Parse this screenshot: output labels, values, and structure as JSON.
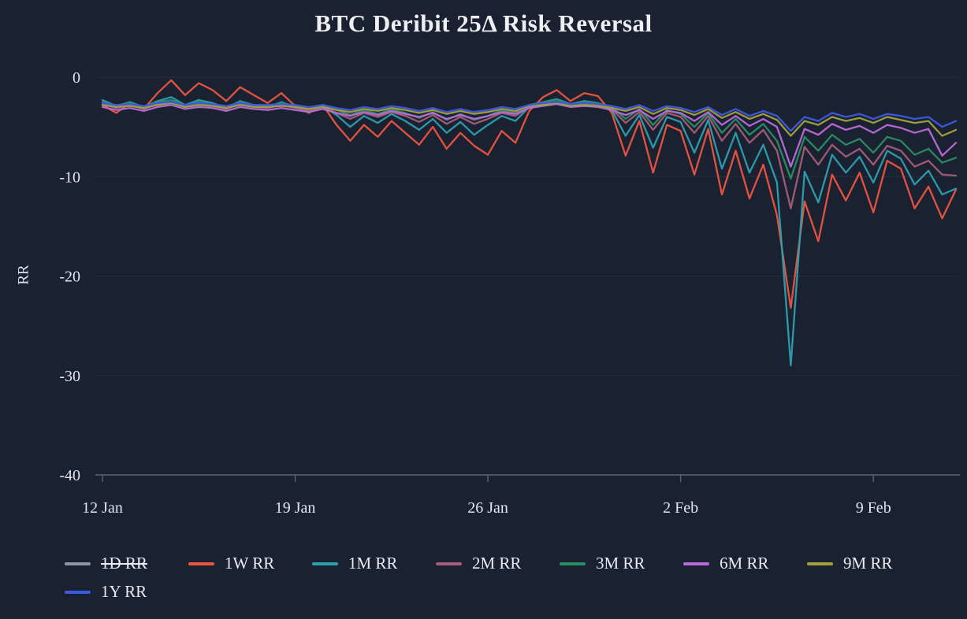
{
  "chart_data": {
    "type": "line",
    "title": "BTC Deribit 25Δ Risk Reversal",
    "ylabel": "RR",
    "xlabel": "",
    "x_unit": "days since 12 Jan",
    "x_step_days": 0.5,
    "xlim_days": [
      0,
      31
    ],
    "ylim": [
      -40,
      0
    ],
    "grid": "horizontal-faint",
    "legend_position": "bottom-left",
    "background_color": "#1a2232",
    "yticks": [
      0,
      -10,
      -20,
      -30,
      -40
    ],
    "xticks": [
      {
        "label": "12 Jan",
        "day": 0
      },
      {
        "label": "19 Jan",
        "day": 7
      },
      {
        "label": "26 Jan",
        "day": 14
      },
      {
        "label": "2 Feb",
        "day": 21
      },
      {
        "label": "9 Feb",
        "day": 28
      }
    ],
    "series": [
      {
        "name": "1D RR",
        "color": "#8e96a3",
        "hidden": true,
        "values": []
      },
      {
        "name": "1W RR",
        "color": "#ee5540",
        "hidden": false,
        "values": [
          -2.8,
          -3.6,
          -2.6,
          -3.2,
          -1.6,
          -0.3,
          -1.8,
          -0.6,
          -1.3,
          -2.4,
          -1.0,
          -1.8,
          -2.6,
          -1.6,
          -2.9,
          -3.6,
          -2.8,
          -4.8,
          -6.4,
          -4.8,
          -6.0,
          -4.4,
          -5.6,
          -6.8,
          -5.0,
          -7.2,
          -5.6,
          -6.9,
          -7.8,
          -5.4,
          -6.6,
          -3.4,
          -2.0,
          -1.3,
          -2.4,
          -1.6,
          -1.9,
          -3.6,
          -7.9,
          -4.4,
          -9.6,
          -4.8,
          -5.4,
          -9.8,
          -5.2,
          -11.8,
          -7.4,
          -12.2,
          -8.8,
          -13.9,
          -23.2,
          -12.5,
          -16.5,
          -9.8,
          -12.4,
          -9.6,
          -13.6,
          -8.4,
          -9.2,
          -13.2,
          -11.0,
          -14.2,
          -11.3
        ]
      },
      {
        "name": "1M RR",
        "color": "#2e9fae",
        "hidden": false,
        "values": [
          -2.3,
          -2.9,
          -2.5,
          -3.0,
          -2.4,
          -2.0,
          -2.8,
          -2.3,
          -2.6,
          -3.1,
          -2.4,
          -2.8,
          -3.0,
          -2.5,
          -3.0,
          -3.4,
          -2.9,
          -3.8,
          -5.0,
          -3.9,
          -4.6,
          -3.7,
          -4.4,
          -5.3,
          -4.2,
          -5.6,
          -4.5,
          -5.8,
          -4.8,
          -3.9,
          -4.4,
          -3.0,
          -2.5,
          -2.2,
          -2.7,
          -2.4,
          -2.6,
          -3.3,
          -5.9,
          -3.8,
          -7.1,
          -4.0,
          -4.5,
          -7.6,
          -4.3,
          -9.2,
          -5.6,
          -9.6,
          -6.8,
          -10.6,
          -29.0,
          -9.5,
          -12.6,
          -7.8,
          -9.6,
          -8.0,
          -10.6,
          -7.4,
          -8.2,
          -10.8,
          -9.4,
          -11.8,
          -11.2
        ]
      },
      {
        "name": "2M RR",
        "color": "#a65d78",
        "hidden": false,
        "values": [
          -2.7,
          -3.1,
          -2.8,
          -3.2,
          -2.7,
          -2.5,
          -3.0,
          -2.7,
          -2.9,
          -3.2,
          -2.7,
          -3.0,
          -3.1,
          -2.8,
          -3.1,
          -3.4,
          -3.0,
          -3.6,
          -4.2,
          -3.6,
          -4.0,
          -3.5,
          -3.9,
          -4.5,
          -3.8,
          -4.7,
          -4.0,
          -4.7,
          -4.2,
          -3.6,
          -3.9,
          -3.0,
          -2.7,
          -2.5,
          -2.9,
          -2.7,
          -2.8,
          -3.2,
          -4.6,
          -3.5,
          -5.3,
          -3.6,
          -4.0,
          -5.6,
          -3.9,
          -6.4,
          -4.7,
          -6.6,
          -5.3,
          -7.4,
          -13.2,
          -7.0,
          -8.8,
          -6.8,
          -8.0,
          -7.2,
          -8.8,
          -6.9,
          -7.4,
          -9.0,
          -8.4,
          -9.8,
          -9.9
        ]
      },
      {
        "name": "3M RR",
        "color": "#2b8d63",
        "hidden": false,
        "values": [
          -2.5,
          -2.9,
          -2.6,
          -3.0,
          -2.5,
          -2.3,
          -2.8,
          -2.5,
          -2.7,
          -3.0,
          -2.5,
          -2.8,
          -2.9,
          -2.6,
          -2.9,
          -3.2,
          -2.8,
          -3.3,
          -3.8,
          -3.3,
          -3.7,
          -3.2,
          -3.6,
          -4.1,
          -3.5,
          -4.3,
          -3.7,
          -4.3,
          -3.9,
          -3.3,
          -3.6,
          -2.8,
          -2.5,
          -2.3,
          -2.7,
          -2.5,
          -2.6,
          -3.0,
          -4.2,
          -3.2,
          -4.8,
          -3.3,
          -3.7,
          -5.0,
          -3.6,
          -5.6,
          -4.2,
          -5.8,
          -4.7,
          -6.4,
          -10.2,
          -6.0,
          -7.4,
          -5.8,
          -6.8,
          -6.2,
          -7.6,
          -6.0,
          -6.4,
          -7.8,
          -7.2,
          -8.6,
          -8.1
        ]
      },
      {
        "name": "6M RR",
        "color": "#bb6bd9",
        "hidden": false,
        "values": [
          -3.0,
          -3.3,
          -3.1,
          -3.4,
          -3.0,
          -2.8,
          -3.2,
          -3.0,
          -3.1,
          -3.4,
          -3.0,
          -3.2,
          -3.3,
          -3.1,
          -3.3,
          -3.5,
          -3.2,
          -3.6,
          -3.9,
          -3.5,
          -3.8,
          -3.4,
          -3.7,
          -4.0,
          -3.6,
          -4.2,
          -3.8,
          -4.2,
          -3.9,
          -3.5,
          -3.7,
          -3.1,
          -2.9,
          -2.7,
          -3.0,
          -2.9,
          -3.0,
          -3.3,
          -3.8,
          -3.3,
          -4.2,
          -3.4,
          -3.6,
          -4.4,
          -3.5,
          -4.8,
          -3.9,
          -4.9,
          -4.2,
          -5.0,
          -9.0,
          -5.2,
          -5.8,
          -4.7,
          -5.3,
          -4.9,
          -5.6,
          -4.8,
          -5.1,
          -5.6,
          -5.2,
          -7.9,
          -6.6
        ]
      },
      {
        "name": "9M RR",
        "color": "#a3a13d",
        "hidden": false,
        "values": [
          -2.8,
          -3.0,
          -2.9,
          -3.1,
          -2.8,
          -2.6,
          -3.0,
          -2.8,
          -2.9,
          -3.1,
          -2.8,
          -3.0,
          -3.0,
          -2.9,
          -3.0,
          -3.2,
          -3.0,
          -3.3,
          -3.5,
          -3.2,
          -3.4,
          -3.1,
          -3.3,
          -3.6,
          -3.3,
          -3.7,
          -3.4,
          -3.7,
          -3.5,
          -3.2,
          -3.4,
          -2.9,
          -2.8,
          -2.6,
          -2.9,
          -2.8,
          -2.9,
          -3.1,
          -3.4,
          -3.0,
          -3.7,
          -3.1,
          -3.3,
          -3.8,
          -3.2,
          -4.1,
          -3.5,
          -4.2,
          -3.7,
          -4.3,
          -5.9,
          -4.4,
          -4.8,
          -4.0,
          -4.4,
          -4.1,
          -4.6,
          -4.0,
          -4.3,
          -4.6,
          -4.4,
          -5.9,
          -5.3
        ]
      },
      {
        "name": "1Y RR",
        "color": "#3d5be0",
        "hidden": false,
        "values": [
          -2.6,
          -2.8,
          -2.7,
          -2.9,
          -2.6,
          -2.5,
          -2.8,
          -2.6,
          -2.7,
          -2.9,
          -2.6,
          -2.8,
          -2.8,
          -2.7,
          -2.8,
          -3.0,
          -2.8,
          -3.1,
          -3.3,
          -3.0,
          -3.2,
          -2.9,
          -3.1,
          -3.4,
          -3.1,
          -3.5,
          -3.2,
          -3.5,
          -3.3,
          -3.0,
          -3.2,
          -2.8,
          -2.6,
          -2.5,
          -2.7,
          -2.6,
          -2.7,
          -2.9,
          -3.2,
          -2.8,
          -3.4,
          -2.9,
          -3.1,
          -3.5,
          -3.0,
          -3.8,
          -3.2,
          -3.9,
          -3.4,
          -3.9,
          -5.4,
          -4.0,
          -4.4,
          -3.6,
          -4.0,
          -3.7,
          -4.2,
          -3.7,
          -3.9,
          -4.2,
          -4.0,
          -5.0,
          -4.4
        ]
      }
    ],
    "style": {
      "text_color": "#e7eaf1",
      "grid_color": "rgba(140,160,200,0.10)",
      "axis_color": "#5c6578"
    }
  }
}
